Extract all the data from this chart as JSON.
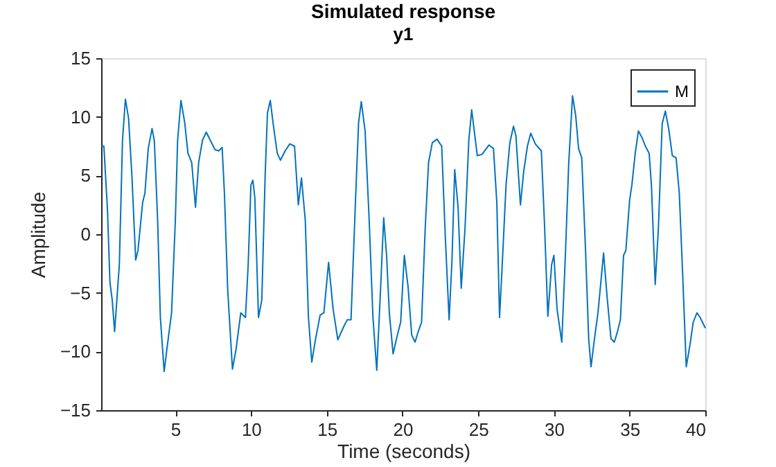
{
  "chart_data": {
    "type": "line",
    "title": "Simulated response",
    "subtitle": "y1",
    "xlabel": "Time (seconds)",
    "ylabel": "Amplitude",
    "xlim": [
      0.1,
      40
    ],
    "ylim": [
      -15,
      15
    ],
    "xticks": [
      5,
      10,
      15,
      20,
      25,
      30,
      35,
      40
    ],
    "yticks": [
      -15,
      -10,
      -5,
      0,
      5,
      10,
      15
    ],
    "grid": false,
    "legend": "top right",
    "line_style": "solid",
    "marker": "none",
    "series": [
      {
        "name": "M",
        "color": "#0072bd",
        "x": [
          0.12,
          0.28,
          0.52,
          0.68,
          0.83,
          0.99,
          1.3,
          1.51,
          1.7,
          1.91,
          2.13,
          2.38,
          2.53,
          2.84,
          2.99,
          3.21,
          3.46,
          3.61,
          3.83,
          4.01,
          4.26,
          4.48,
          4.75,
          5.0,
          5.15,
          5.37,
          5.62,
          5.83,
          6.08,
          6.33,
          6.54,
          6.79,
          7.04,
          7.31,
          7.62,
          7.87,
          8.09,
          8.24,
          8.46,
          8.77,
          9.01,
          9.32,
          9.63,
          9.81,
          9.99,
          10.12,
          10.25,
          10.49,
          10.71,
          10.93,
          11.08,
          11.27,
          11.48,
          11.73,
          11.94,
          12.25,
          12.56,
          12.87,
          13.12,
          13.33,
          13.58,
          13.79,
          14.01,
          14.25,
          14.56,
          14.81,
          15.12,
          15.42,
          15.73,
          16.11,
          16.35,
          16.6,
          16.88,
          17.1,
          17.28,
          17.53,
          17.8,
          18.05,
          18.3,
          18.52,
          18.76,
          18.95,
          19.13,
          19.38,
          19.66,
          19.88,
          20.12,
          20.37,
          20.61,
          20.83,
          21.04,
          21.26,
          21.5,
          21.72,
          21.97,
          22.28,
          22.59,
          22.83,
          23.08,
          23.27,
          23.45,
          23.67,
          23.88,
          24.13,
          24.38,
          24.57,
          24.94,
          25.25,
          25.71,
          26.01,
          26.23,
          26.41,
          26.56,
          26.84,
          27.09,
          27.33,
          27.49,
          27.79,
          28.01,
          28.25,
          28.47,
          28.77,
          29.17,
          29.39,
          29.6,
          29.85,
          30.0,
          30.21,
          30.52,
          30.77,
          30.98,
          31.23,
          31.44,
          31.63,
          31.84,
          32.09,
          32.3,
          32.45,
          32.67,
          32.91,
          33.1,
          33.28,
          33.53,
          33.77,
          33.99,
          34.2,
          34.39,
          34.6,
          34.75,
          35.0,
          35.15,
          35.37,
          35.58,
          35.83,
          36.04,
          36.29,
          36.44,
          36.69,
          36.9,
          37.15,
          37.36,
          37.58,
          37.82,
          38.07,
          38.28,
          38.5,
          38.74,
          38.99,
          39.2,
          39.45,
          39.66,
          40.0
        ],
        "values": [
          7.5,
          7.5,
          2.0,
          -4.1,
          -5.6,
          -8.3,
          -2.6,
          8.0,
          11.5,
          9.9,
          5.0,
          -2.2,
          -1.4,
          2.7,
          3.5,
          7.3,
          9.0,
          8.0,
          1.2,
          -7.1,
          -11.7,
          -9.4,
          -6.7,
          1.2,
          8.0,
          11.4,
          9.5,
          6.9,
          6.1,
          2.3,
          6.1,
          8.0,
          8.7,
          8.0,
          7.2,
          7.1,
          7.4,
          3.5,
          -4.8,
          -11.5,
          -9.8,
          -6.7,
          -7.1,
          -2.6,
          4.2,
          4.6,
          3.1,
          -7.1,
          -5.6,
          5.0,
          10.3,
          11.4,
          9.2,
          6.9,
          6.3,
          7.1,
          7.7,
          7.5,
          2.5,
          4.8,
          1.2,
          -7.1,
          -10.9,
          -9.0,
          -6.9,
          -6.7,
          -2.4,
          -6.4,
          -9.0,
          -7.9,
          -7.3,
          -7.3,
          2.3,
          9.5,
          11.3,
          8.8,
          1.2,
          -7.1,
          -11.6,
          -5.6,
          1.4,
          -1.8,
          -6.7,
          -10.2,
          -8.6,
          -7.5,
          -1.8,
          -4.5,
          -8.6,
          -9.2,
          -8.3,
          -7.5,
          0.5,
          6.1,
          7.8,
          8.1,
          7.5,
          -0.3,
          -7.3,
          -2.2,
          5.5,
          2.3,
          -4.6,
          0.5,
          8.0,
          10.6,
          6.7,
          6.8,
          7.6,
          7.3,
          2.7,
          -7.1,
          -3.3,
          4.2,
          7.8,
          9.2,
          8.4,
          2.5,
          5.4,
          7.5,
          8.6,
          7.7,
          7.1,
          0.5,
          -7.0,
          -2.6,
          -1.8,
          -6.4,
          -9.2,
          -1.4,
          6.1,
          11.8,
          10.1,
          7.3,
          6.5,
          -1.4,
          -9.0,
          -11.3,
          -9.0,
          -6.7,
          -4.1,
          -1.6,
          -5.6,
          -8.9,
          -9.2,
          -8.3,
          -7.3,
          -1.8,
          -1.4,
          2.9,
          4.2,
          6.9,
          8.8,
          8.2,
          7.5,
          6.9,
          4.2,
          -4.3,
          0.5,
          9.4,
          10.5,
          9.0,
          6.7,
          6.5,
          3.5,
          -3.3,
          -11.3,
          -9.4,
          -7.5,
          -6.7,
          -7.1,
          -8.0
        ]
      }
    ]
  }
}
